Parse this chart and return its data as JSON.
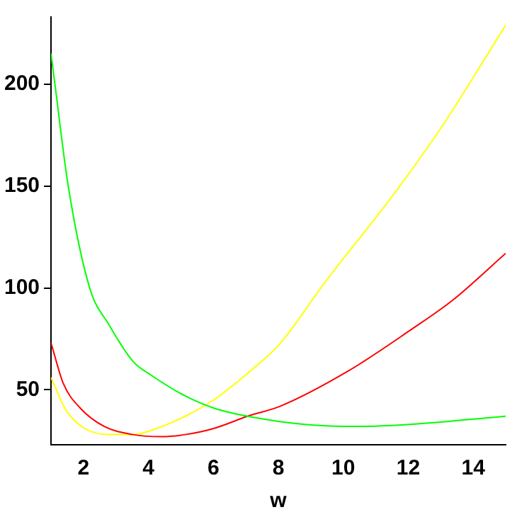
{
  "chart_data": {
    "type": "line",
    "xlabel": "w",
    "xlim": [
      1,
      15
    ],
    "xticks": [
      2,
      4,
      6,
      8,
      10,
      12,
      14
    ],
    "ylim": [
      23,
      233
    ],
    "yticks": [
      50,
      100,
      150,
      200
    ],
    "grid": false,
    "legend": false,
    "marker": "none",
    "line_style": "solid",
    "series": [
      {
        "color": "#00ff00",
        "x": [
          1.0,
          1.12,
          1.53,
          2.19,
          2.78,
          3.52,
          4.1,
          5.13,
          6.01,
          7.05,
          8.81,
          10.43,
          12.04,
          15.0
        ],
        "values": [
          215,
          200,
          150,
          100,
          82,
          64,
          57,
          47,
          41,
          37,
          33,
          32,
          33,
          37
        ]
      },
      {
        "color": "#ff0000",
        "x": [
          1.0,
          1.38,
          1.9,
          2.64,
          3.52,
          4.4,
          5.13,
          6.01,
          7.05,
          8.07,
          10.13,
          12.04,
          13.37,
          15.0
        ],
        "values": [
          73,
          53,
          41,
          32,
          28,
          27,
          28,
          31,
          37,
          42,
          59,
          79,
          94,
          117
        ]
      },
      {
        "color": "#ffff00",
        "x": [
          1.0,
          1.46,
          2.04,
          2.78,
          3.52,
          4.25,
          5.13,
          6.01,
          7.05,
          8.07,
          9.4,
          11.6,
          13.07,
          15.0
        ],
        "values": [
          56,
          40,
          31,
          28,
          28,
          31,
          37,
          45,
          58,
          73,
          102,
          147,
          180,
          229
        ]
      }
    ]
  }
}
